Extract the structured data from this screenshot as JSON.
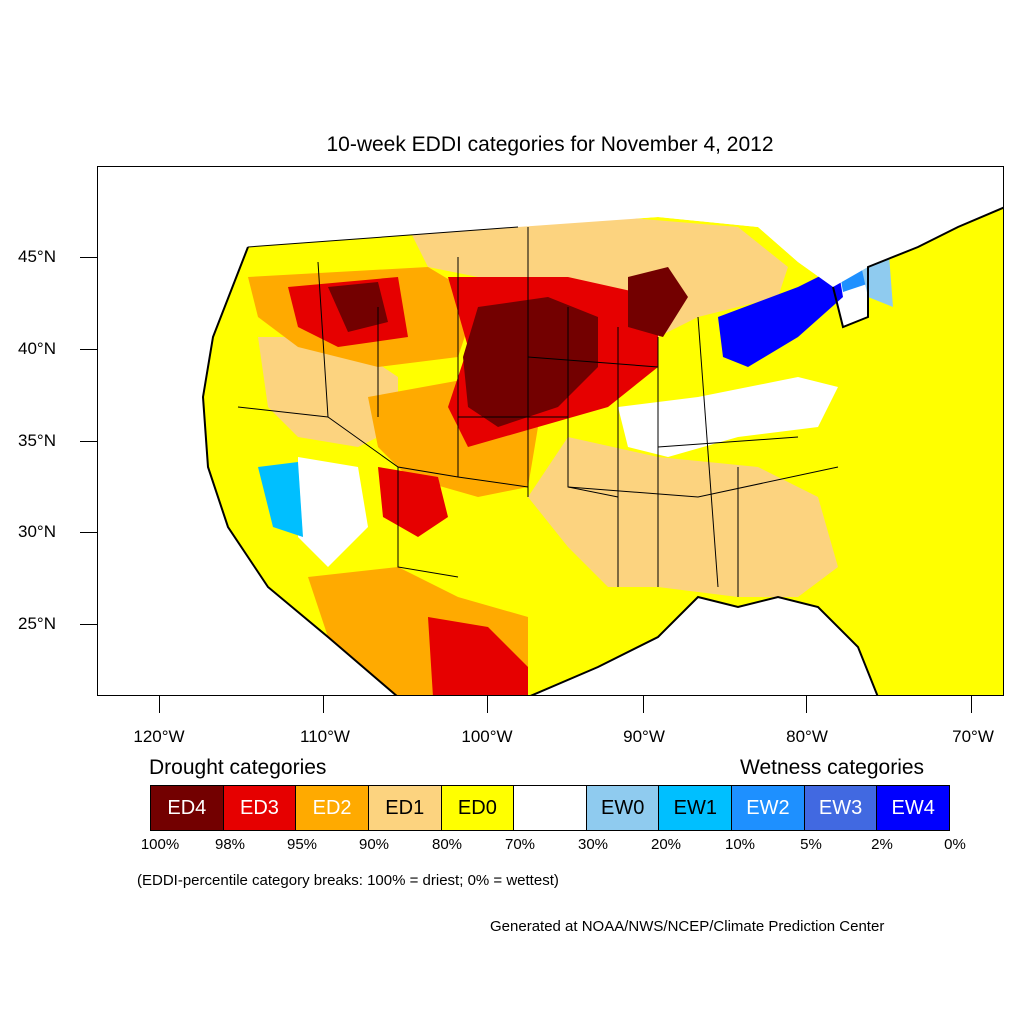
{
  "title": "10-week EDDI categories for November 4, 2012",
  "lat_labels": [
    "45°N",
    "40°N",
    "35°N",
    "30°N",
    "25°N"
  ],
  "lon_labels": [
    "120°W",
    "110°W",
    "100°W",
    "90°W",
    "80°W",
    "70°W"
  ],
  "legend": {
    "drought_heading": "Drought categories",
    "wetness_heading": "Wetness categories",
    "categories": [
      {
        "label": "ED4",
        "color": "#730000",
        "text_color": "#ffffff"
      },
      {
        "label": "ED3",
        "color": "#e60000",
        "text_color": "#ffffff"
      },
      {
        "label": "ED2",
        "color": "#ffaa00",
        "text_color": "#ffffff"
      },
      {
        "label": "ED1",
        "color": "#fcd37f",
        "text_color": "#000000"
      },
      {
        "label": "ED0",
        "color": "#ffff00",
        "text_color": "#000000"
      },
      {
        "label": "",
        "color": "#ffffff",
        "text_color": "#000000"
      },
      {
        "label": "EW0",
        "color": "#8fcbef",
        "text_color": "#000000"
      },
      {
        "label": "EW1",
        "color": "#00bfff",
        "text_color": "#000000"
      },
      {
        "label": "EW2",
        "color": "#1e90ff",
        "text_color": "#ffffff"
      },
      {
        "label": "EW3",
        "color": "#4169e1",
        "text_color": "#ffffff"
      },
      {
        "label": "EW4",
        "color": "#0000ff",
        "text_color": "#ffffff"
      }
    ],
    "percentiles": [
      "100%",
      "98%",
      "95%",
      "90%",
      "80%",
      "70%",
      "30%",
      "20%",
      "10%",
      "5%",
      "2%",
      "0%"
    ]
  },
  "note": "(EDDI-percentile category breaks: 100% = driest; 0% = wettest)",
  "credit": "Generated at NOAA/NWS/NCEP/Climate Prediction Center"
}
